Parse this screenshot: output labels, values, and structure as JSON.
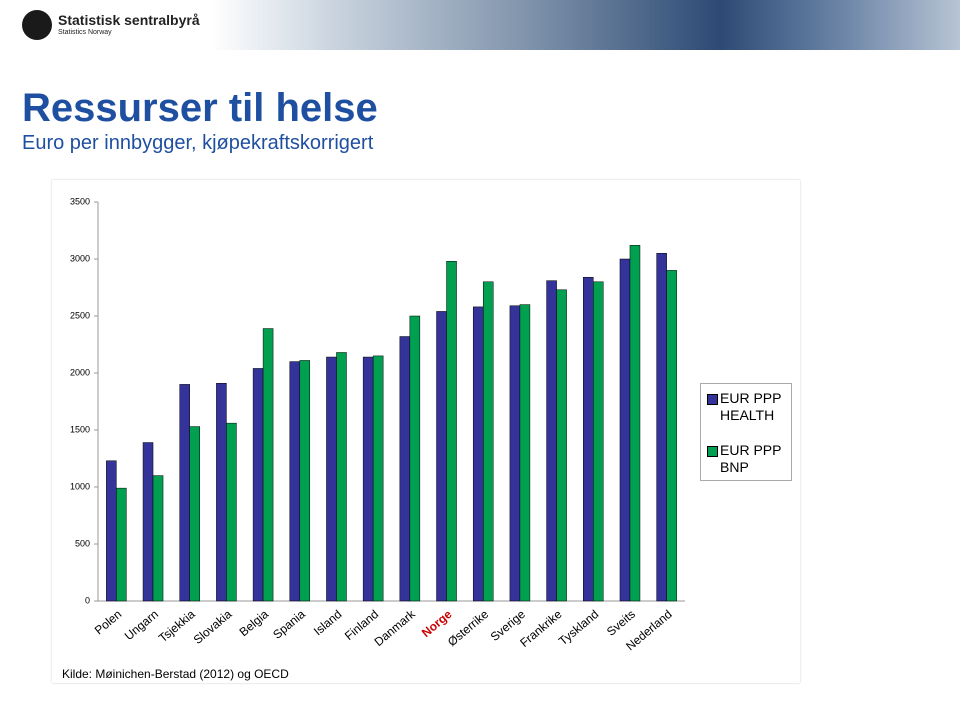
{
  "header": {
    "logo_name": "Statistisk sentralbyrå",
    "logo_sub": "Statistics Norway"
  },
  "chart_data": {
    "type": "bar",
    "title": "Ressurser til helse",
    "subtitle": "Euro per innbygger, kjøpekraftskorrigert",
    "source": "Kilde: Møinichen-Berstad (2012) og OECD",
    "categories": [
      "Polen",
      "Ungarn",
      "Tsjekkia",
      "Slovakia",
      "Belgia",
      "Spania",
      "Island",
      "Finland",
      "Danmark",
      "Norge",
      "Østerrike",
      "Sverige",
      "Frankrike",
      "Tyskland",
      "Sveits",
      "Nederland"
    ],
    "series": [
      {
        "name": "EUR PPP HEALTH",
        "color": "#333399",
        "values": [
          1230,
          1390,
          1900,
          1910,
          2040,
          2100,
          2140,
          2140,
          2320,
          2540,
          2580,
          2590,
          2810,
          2840,
          3000,
          3050
        ]
      },
      {
        "name": "EUR PPP BNP",
        "color": "#00a050",
        "values": [
          990,
          1100,
          1530,
          1560,
          2390,
          2110,
          2180,
          2150,
          2500,
          2980,
          2800,
          2600,
          2730,
          2800,
          3120,
          2900
        ]
      }
    ],
    "ylim": [
      0,
      3500
    ],
    "yticks": [
      0,
      500,
      1000,
      1500,
      2000,
      2500,
      3000,
      3500
    ],
    "grid": false,
    "legend": "right",
    "highlight": {
      "index": 9,
      "color": "#cc0000"
    }
  }
}
